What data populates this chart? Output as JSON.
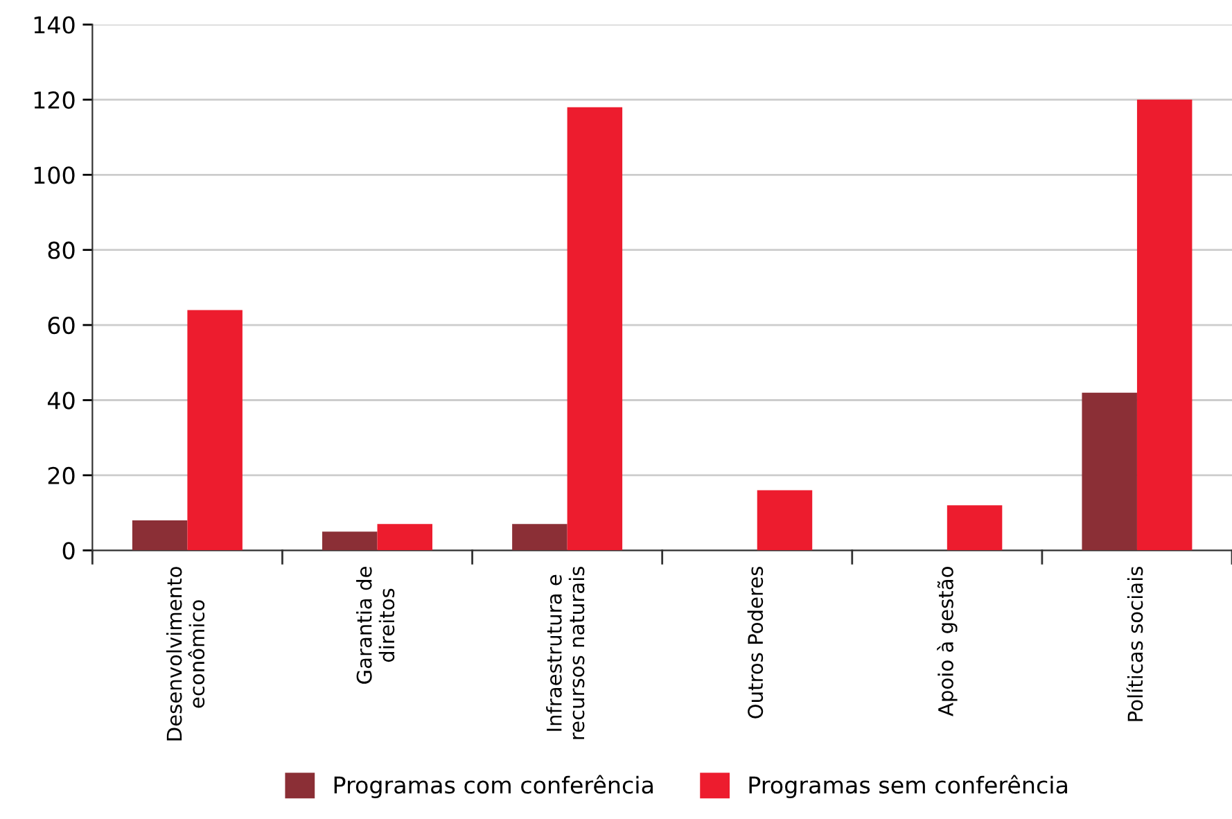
{
  "chart_data": {
    "type": "bar",
    "categories": [
      "Desenvolvimento\neconômico",
      "Garantia de\ndireitos",
      "Infraestrutura e\nrecursos naturais",
      "Outros Poderes",
      "Apoio à gestão",
      "Políticas sociais"
    ],
    "series": [
      {
        "name": "Programas com conferência",
        "color": "#8b2f36",
        "values": [
          8,
          5,
          7,
          0,
          0,
          42
        ]
      },
      {
        "name": "Programas sem conferência",
        "color": "#ed1c2e",
        "values": [
          64,
          7,
          118,
          16,
          12,
          120
        ]
      }
    ],
    "ylim": [
      0,
      140
    ],
    "yticks": [
      0,
      20,
      40,
      60,
      80,
      100,
      120,
      140
    ],
    "grid": "y",
    "legend": "bottom"
  }
}
